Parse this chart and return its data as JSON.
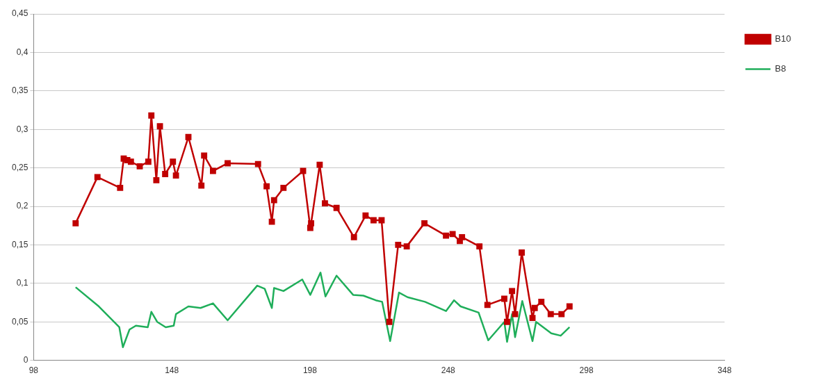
{
  "chart_data": {
    "type": "line",
    "xlim": [
      98,
      348
    ],
    "xticks": [
      98,
      148,
      198,
      248,
      298,
      348
    ],
    "ylim": [
      0,
      0.45
    ],
    "yticks": [
      {
        "value": 0,
        "label": "0"
      },
      {
        "value": 0.05,
        "label": "0,05"
      },
      {
        "value": 0.1,
        "label": "0,1"
      },
      {
        "value": 0.15,
        "label": "0,15"
      },
      {
        "value": 0.2,
        "label": "0,2"
      },
      {
        "value": 0.25,
        "label": "0,25"
      },
      {
        "value": 0.3,
        "label": "0,3"
      },
      {
        "value": 0.35,
        "label": "0,35"
      },
      {
        "value": 0.4,
        "label": "0,4"
      },
      {
        "value": 0.45,
        "label": "0,45"
      }
    ],
    "grid": "y",
    "legend": "right",
    "line_style": "solid",
    "series": [
      {
        "name": "B10",
        "color": "#c00000",
        "marker": "square",
        "x": [
          113.2,
          121.1,
          129.3,
          130.6,
          131.9,
          133.2,
          136.4,
          139.5,
          140.6,
          142.4,
          143.7,
          145.6,
          148.4,
          149.5,
          154.0,
          158.7,
          159.7,
          162.9,
          168.2,
          179.2,
          182.3,
          184.2,
          185.0,
          188.4,
          195.5,
          198.1,
          198.4,
          201.5,
          203.4,
          207.6,
          213.9,
          218.1,
          221.0,
          223.9,
          226.7,
          229.9,
          233.0,
          239.4,
          247.2,
          249.6,
          252.2,
          253.0,
          259.3,
          262.2,
          268.3,
          269.3,
          271.1,
          272.2,
          274.6,
          278.5,
          279.3,
          281.7,
          285.1,
          289.0,
          291.9
        ],
        "values": [
          0.178,
          0.238,
          0.224,
          0.262,
          0.26,
          0.258,
          0.252,
          0.258,
          0.318,
          0.234,
          0.304,
          0.242,
          0.258,
          0.24,
          0.29,
          0.227,
          0.266,
          0.246,
          0.256,
          0.255,
          0.226,
          0.18,
          0.208,
          0.224,
          0.246,
          0.172,
          0.178,
          0.254,
          0.204,
          0.198,
          0.16,
          0.188,
          0.182,
          0.182,
          0.05,
          0.15,
          0.148,
          0.178,
          0.162,
          0.164,
          0.155,
          0.16,
          0.148,
          0.072,
          0.08,
          0.05,
          0.09,
          0.06,
          0.14,
          0.055,
          0.068,
          0.076,
          0.06,
          0.06,
          0.07
        ]
      },
      {
        "name": "B8",
        "color": "#1fae5a",
        "marker": "none",
        "x": [
          113.2,
          121.6,
          129.0,
          130.3,
          132.7,
          135.0,
          139.3,
          140.6,
          142.7,
          145.8,
          148.7,
          149.5,
          154.0,
          158.4,
          162.9,
          168.2,
          178.9,
          181.6,
          184.2,
          185.0,
          188.4,
          195.2,
          198.1,
          201.8,
          203.6,
          207.6,
          213.6,
          217.3,
          221.8,
          224.1,
          227.0,
          230.2,
          233.3,
          239.6,
          247.2,
          250.1,
          252.5,
          259.0,
          262.5,
          268.3,
          269.3,
          271.1,
          272.2,
          274.8,
          278.5,
          279.8,
          285.3,
          288.7,
          291.9
        ],
        "values": [
          0.095,
          0.07,
          0.043,
          0.017,
          0.04,
          0.045,
          0.043,
          0.063,
          0.05,
          0.043,
          0.045,
          0.06,
          0.07,
          0.068,
          0.074,
          0.052,
          0.097,
          0.093,
          0.068,
          0.094,
          0.09,
          0.105,
          0.085,
          0.114,
          0.083,
          0.11,
          0.085,
          0.084,
          0.078,
          0.076,
          0.025,
          0.088,
          0.082,
          0.076,
          0.064,
          0.078,
          0.07,
          0.062,
          0.026,
          0.05,
          0.024,
          0.06,
          0.03,
          0.077,
          0.025,
          0.05,
          0.035,
          0.032,
          0.043
        ]
      }
    ]
  }
}
